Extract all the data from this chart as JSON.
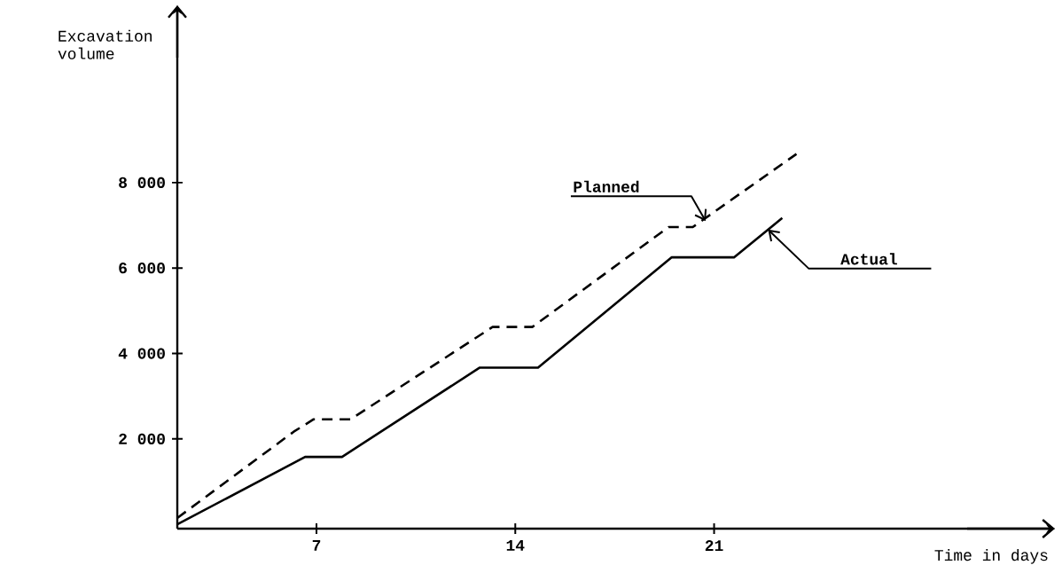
{
  "chart_data": {
    "type": "line",
    "xlabel": "Time in days",
    "ylabel": "Excavation volume",
    "xlim": [
      2.1,
      33
    ],
    "ylim": [
      -100,
      12150
    ],
    "xticks": [
      7,
      14,
      21
    ],
    "yticks": [
      {
        "value": 2000,
        "label": "2 000"
      },
      {
        "value": 4000,
        "label": "4 000"
      },
      {
        "value": 6000,
        "label": "6 000"
      },
      {
        "value": 8000,
        "label": "8 000"
      }
    ],
    "grid": false,
    "marker": "none",
    "series": [
      {
        "color": "#000000",
        "line_style": "dashed",
        "x": [
          2.1,
          6.2,
          6.9,
          8.2,
          13.2,
          14.6,
          19.4,
          20.25,
          23.9
        ],
        "values": [
          150,
          2170,
          2460,
          2460,
          4620,
          4620,
          6960,
          6960,
          8670
        ]
      },
      {
        "color": "#000000",
        "line_style": "solid",
        "x": [
          2.1,
          6.6,
          7.9,
          12.75,
          14.8,
          19.5,
          21.7,
          23.4
        ],
        "values": [
          0,
          1580,
          1580,
          3670,
          3670,
          6250,
          6250,
          7170
        ]
      }
    ],
    "annotations": [
      {
        "text": "Planned",
        "x": 20.7,
        "y": 7100
      },
      {
        "text": "Actual",
        "x": 22.9,
        "y": 6900
      }
    ]
  }
}
